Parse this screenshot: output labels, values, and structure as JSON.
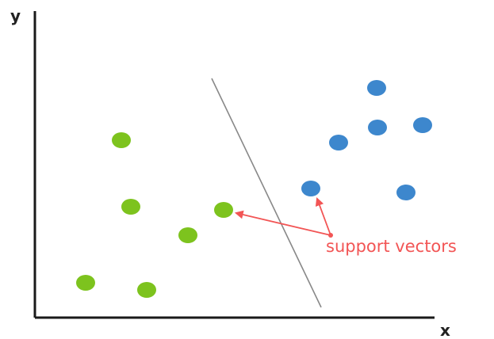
{
  "axes": {
    "x_label": "x",
    "y_label": "y",
    "color": "#1a1a1a"
  },
  "classes": [
    {
      "color": "#7dc31e",
      "points": [
        [
          108,
          357
        ],
        [
          185,
          366
        ],
        [
          237,
          297
        ],
        [
          165,
          261
        ],
        [
          153,
          177
        ],
        [
          282,
          265
        ]
      ]
    },
    {
      "color": "#3d87cd",
      "points": [
        [
          475,
          111
        ],
        [
          427,
          180
        ],
        [
          476,
          161
        ],
        [
          533,
          158
        ],
        [
          392,
          238
        ],
        [
          512,
          243
        ]
      ]
    }
  ],
  "separator": {
    "color": "#888888",
    "from": [
      267,
      99
    ],
    "to": [
      405,
      388
    ]
  },
  "annotation": {
    "text": "support vectors",
    "color": "#f25555",
    "targets": [
      [
        282,
        265
      ],
      [
        392,
        238
      ]
    ]
  }
}
